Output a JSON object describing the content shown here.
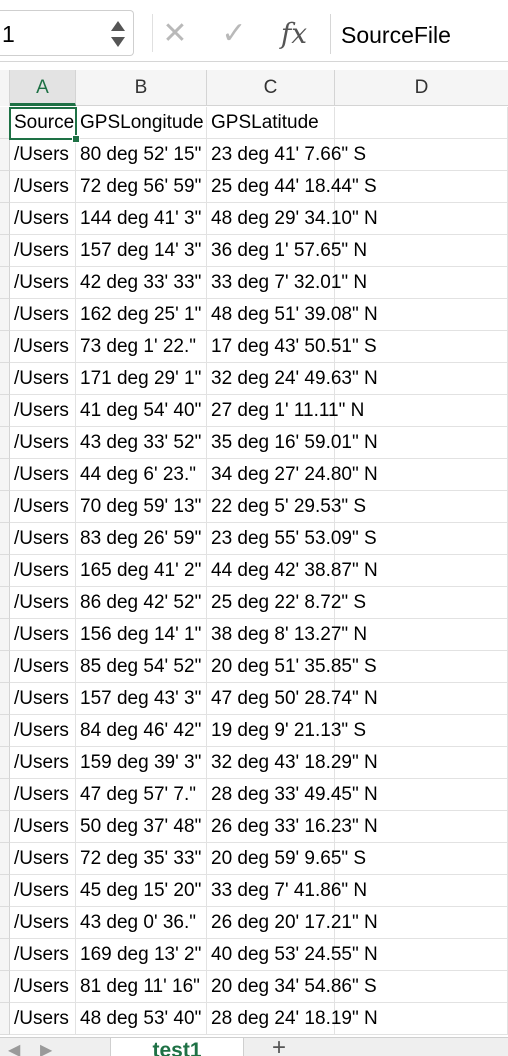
{
  "formula_bar": {
    "name_box_value": "1",
    "cancel_symbol": "✕",
    "enter_symbol": "✓",
    "fx_symbol": "fx",
    "formula_value": "SourceFile"
  },
  "columns": [
    "A",
    "B",
    "C",
    "D"
  ],
  "header_row": [
    "SourceFile",
    "GPSLongitude",
    "GPSLatitude",
    ""
  ],
  "rows": [
    [
      "/Users",
      "80 deg 52' 15\"",
      "23 deg 41' 7.66\" S"
    ],
    [
      "/Users",
      "72 deg 56' 59\"",
      "25 deg 44' 18.44\" S"
    ],
    [
      "/Users",
      "144 deg 41' 3\"",
      "48 deg 29' 34.10\" N"
    ],
    [
      "/Users",
      "157 deg 14' 3\"",
      "36 deg 1' 57.65\" N"
    ],
    [
      "/Users",
      "42 deg 33' 33\"",
      "33 deg 7' 32.01\" N"
    ],
    [
      "/Users",
      "162 deg 25' 1\"",
      "48 deg 51' 39.08\" N"
    ],
    [
      "/Users",
      "73 deg 1' 22.\"",
      "17 deg 43' 50.51\" S"
    ],
    [
      "/Users",
      "171 deg 29' 1\"",
      "32 deg 24' 49.63\" N"
    ],
    [
      "/Users",
      "41 deg 54' 40\"",
      "27 deg 1' 11.11\" N"
    ],
    [
      "/Users",
      "43 deg 33' 52\"",
      "35 deg 16' 59.01\" N"
    ],
    [
      "/Users",
      "44 deg 6' 23.\"",
      "34 deg 27' 24.80\" N"
    ],
    [
      "/Users",
      "70 deg 59' 13\"",
      "22 deg 5' 29.53\" S"
    ],
    [
      "/Users",
      "83 deg 26' 59\"",
      "23 deg 55' 53.09\" S"
    ],
    [
      "/Users",
      "165 deg 41' 2\"",
      "44 deg 42' 38.87\" N"
    ],
    [
      "/Users",
      "86 deg 42' 52\"",
      "25 deg 22' 8.72\" S"
    ],
    [
      "/Users",
      "156 deg 14' 1\"",
      "38 deg 8' 13.27\" N"
    ],
    [
      "/Users",
      "85 deg 54' 52\"",
      "20 deg 51' 35.85\" S"
    ],
    [
      "/Users",
      "157 deg 43' 3\"",
      "47 deg 50' 28.74\" N"
    ],
    [
      "/Users",
      "84 deg 46' 42\"",
      "19 deg 9' 21.13\" S"
    ],
    [
      "/Users",
      "159 deg 39' 3\"",
      "32 deg 43' 18.29\" N"
    ],
    [
      "/Users",
      "47 deg 57' 7.\"",
      "28 deg 33' 49.45\" N"
    ],
    [
      "/Users",
      "50 deg 37' 48\"",
      "26 deg 33' 16.23\" N"
    ],
    [
      "/Users",
      "72 deg 35' 33\"",
      "20 deg 59' 9.65\" S"
    ],
    [
      "/Users",
      "45 deg 15' 20\"",
      "33 deg 7' 41.86\" N"
    ],
    [
      "/Users",
      "43 deg 0' 36.\"",
      "26 deg 20' 17.21\" N"
    ],
    [
      "/Users",
      "169 deg 13' 2\"",
      "40 deg 53' 24.55\" N"
    ],
    [
      "/Users",
      "81 deg 11' 16\"",
      "20 deg 34' 54.86\" S"
    ],
    [
      "/Users",
      "48 deg 53' 40\"",
      "28 deg 24' 18.19\" N"
    ]
  ],
  "sheet_tabs": {
    "active": "test1",
    "add_symbol": "+"
  },
  "colors": {
    "accent": "#1e7145",
    "header_bg": "#f5f5f5",
    "gridline": "#e2e2e2"
  }
}
